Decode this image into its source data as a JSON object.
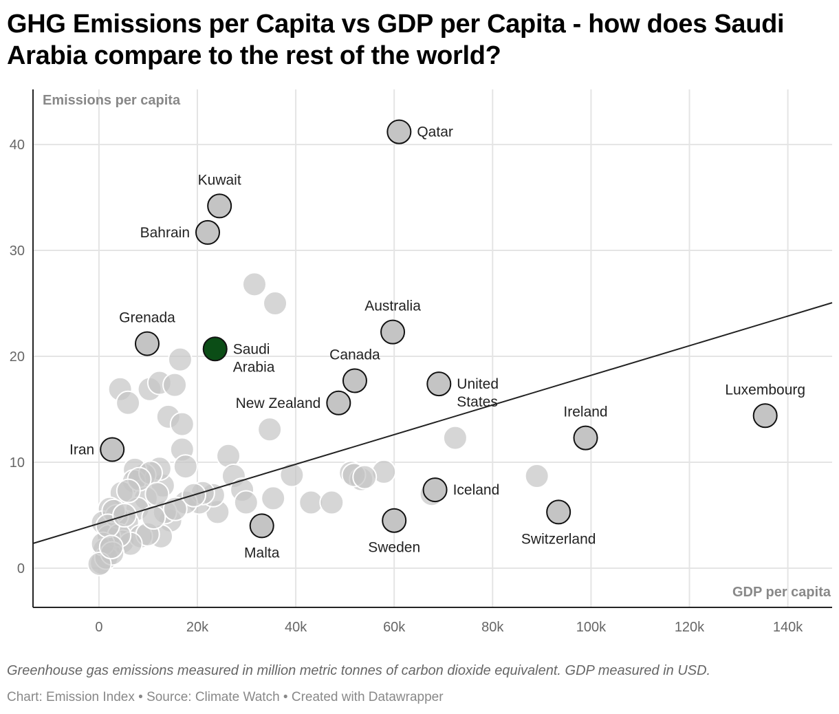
{
  "chart_data": {
    "type": "scatter",
    "title": "GHG Emissions per Capita vs GDP per Capita - how does Saudi Arabia compare to the rest of the world?",
    "xlabel": "GDP per capita",
    "ylabel": "Emissions per capita",
    "xlim": [
      -13400,
      149000
    ],
    "ylim": [
      -3.7,
      45.2
    ],
    "x_ticks": [
      0,
      20000,
      40000,
      60000,
      80000,
      100000,
      120000,
      140000
    ],
    "x_tick_labels": [
      "0",
      "20k",
      "40k",
      "60k",
      "80k",
      "100k",
      "120k",
      "140k"
    ],
    "y_ticks": [
      0,
      10,
      20,
      30,
      40
    ],
    "y_tick_labels": [
      "0",
      "10",
      "20",
      "30",
      "40"
    ],
    "grid": true,
    "trend_line": {
      "x": [
        -13400,
        149000
      ],
      "y": [
        2.34,
        25.06
      ]
    },
    "colors": {
      "point": "#c4c4c4",
      "highlight": "#0b4d16",
      "labeled_point": "#c4c4c4",
      "trend": "#222222"
    },
    "labeled_points": [
      {
        "name": "Qatar",
        "x": 61000,
        "y": 41.2,
        "label_pos": "right"
      },
      {
        "name": "Kuwait",
        "x": 24500,
        "y": 34.2,
        "label_pos": "top"
      },
      {
        "name": "Bahrain",
        "x": 22100,
        "y": 31.7,
        "label_pos": "left"
      },
      {
        "name": "Grenada",
        "x": 9800,
        "y": 21.2,
        "label_pos": "top"
      },
      {
        "name": "Saudi Arabia",
        "x": 23600,
        "y": 20.7,
        "label_pos": "right",
        "wrap": true,
        "highlight": true
      },
      {
        "name": "Australia",
        "x": 59700,
        "y": 22.3,
        "label_pos": "top"
      },
      {
        "name": "Canada",
        "x": 52000,
        "y": 17.7,
        "label_pos": "top"
      },
      {
        "name": "New Zealand",
        "x": 48700,
        "y": 15.6,
        "label_pos": "left"
      },
      {
        "name": "United States",
        "x": 69100,
        "y": 17.4,
        "label_pos": "right",
        "wrap": true
      },
      {
        "name": "Luxembourg",
        "x": 135400,
        "y": 14.4,
        "label_pos": "top"
      },
      {
        "name": "Ireland",
        "x": 98900,
        "y": 12.3,
        "label_pos": "top"
      },
      {
        "name": "Iran",
        "x": 2700,
        "y": 11.2,
        "label_pos": "left"
      },
      {
        "name": "Iceland",
        "x": 68300,
        "y": 7.4,
        "label_pos": "right"
      },
      {
        "name": "Switzerland",
        "x": 93400,
        "y": 5.3,
        "label_pos": "bottom"
      },
      {
        "name": "Sweden",
        "x": 60000,
        "y": 4.5,
        "label_pos": "bottom"
      },
      {
        "name": "Malta",
        "x": 33100,
        "y": 4.0,
        "label_pos": "bottom"
      }
    ],
    "other_points": [
      [
        31600,
        26.8
      ],
      [
        35800,
        25.0
      ],
      [
        16500,
        19.7
      ],
      [
        4300,
        16.9
      ],
      [
        5900,
        15.6
      ],
      [
        10300,
        16.9
      ],
      [
        12300,
        17.5
      ],
      [
        15400,
        17.3
      ],
      [
        14100,
        14.3
      ],
      [
        16900,
        13.6
      ],
      [
        34700,
        13.1
      ],
      [
        72400,
        12.3
      ],
      [
        16900,
        11.2
      ],
      [
        17600,
        9.6
      ],
      [
        26300,
        10.6
      ],
      [
        27400,
        8.7
      ],
      [
        39200,
        8.8
      ],
      [
        57900,
        9.1
      ],
      [
        51200,
        9.0
      ],
      [
        53300,
        8.4
      ],
      [
        89000,
        8.7
      ],
      [
        35400,
        6.6
      ],
      [
        43100,
        6.2
      ],
      [
        47300,
        6.2
      ],
      [
        67600,
        7.0
      ],
      [
        29100,
        7.4
      ],
      [
        29900,
        6.2
      ],
      [
        24100,
        5.3
      ],
      [
        20400,
        6.2
      ],
      [
        23200,
        6.9
      ],
      [
        21100,
        7.1
      ],
      [
        17600,
        6.2
      ],
      [
        14500,
        4.5
      ],
      [
        12600,
        3.0
      ],
      [
        13400,
        5.3
      ],
      [
        13000,
        7.8
      ],
      [
        12300,
        9.4
      ],
      [
        9200,
        8.8
      ],
      [
        7300,
        9.3
      ],
      [
        7100,
        8.2
      ],
      [
        4600,
        7.1
      ],
      [
        9500,
        6.6
      ],
      [
        7800,
        5.6
      ],
      [
        5700,
        4.3
      ],
      [
        4800,
        2.5
      ],
      [
        8500,
        3.0
      ],
      [
        9900,
        3.2
      ],
      [
        6400,
        2.3
      ],
      [
        2200,
        5.6
      ],
      [
        800,
        4.3
      ],
      [
        2000,
        3.0
      ],
      [
        1100,
        1.7
      ],
      [
        600,
        0.5
      ],
      [
        1500,
        1.0
      ],
      [
        3600,
        4.9
      ],
      [
        4100,
        3.1
      ],
      [
        11100,
        4.8
      ],
      [
        15500,
        5.6
      ],
      [
        19300,
        6.9
      ],
      [
        800,
        2.3
      ],
      [
        2700,
        1.4
      ],
      [
        100,
        0.4
      ],
      [
        51800,
        8.8
      ],
      [
        54000,
        8.6
      ],
      [
        10500,
        9.0
      ],
      [
        8200,
        8.4
      ],
      [
        6000,
        7.3
      ],
      [
        3000,
        5.4
      ],
      [
        1800,
        4.0
      ],
      [
        2500,
        2.0
      ],
      [
        5200,
        5.0
      ],
      [
        11800,
        7.0
      ]
    ]
  },
  "footer": {
    "notes": "Greenhouse gas emissions measured in million metric tonnes of carbon dioxide equivalent. GDP measured in USD.",
    "credit": "Chart: Emission Index • Source: Climate Watch • Created with Datawrapper"
  }
}
